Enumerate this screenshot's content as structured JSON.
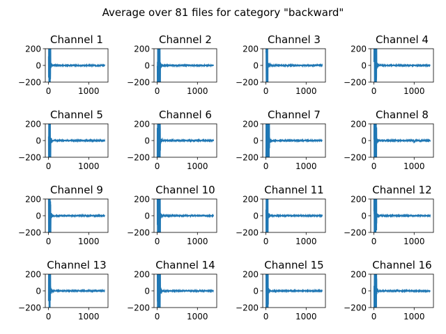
{
  "suptitle": "Average over 81 files for category \"backward\"",
  "colors": {
    "line": "#1f77b4",
    "axes": "#000000",
    "background": "#ffffff"
  },
  "chart_data": {
    "type": "line",
    "grid": false,
    "layout": "4x4",
    "xlim": [
      -80,
      1480
    ],
    "ylim": [
      -200,
      200
    ],
    "xticks": [
      0,
      1000
    ],
    "xtick_labels": [
      "0",
      "1000"
    ],
    "yticks": [
      200,
      0,
      -200
    ],
    "ytick_labels": [
      "200",
      "0",
      "−200"
    ],
    "x_extent": [
      0,
      1400
    ],
    "panels": [
      {
        "title": "Channel 1",
        "spike_center": 25,
        "spike_width": 55,
        "artifact": {
          "x": 1200,
          "dy": -3
        }
      },
      {
        "title": "Channel 2",
        "spike_center": 30,
        "spike_width": 80
      },
      {
        "title": "Channel 3",
        "spike_center": 28,
        "spike_width": 50
      },
      {
        "title": "Channel 4",
        "spike_center": 25,
        "spike_width": 70
      },
      {
        "title": "Channel 5",
        "spike_center": 25,
        "spike_width": 55
      },
      {
        "title": "Channel 6",
        "spike_center": 30,
        "spike_width": 80
      },
      {
        "title": "Channel 7",
        "spike_center": 30,
        "spike_width": 90
      },
      {
        "title": "Channel 8",
        "spike_center": 28,
        "spike_width": 70,
        "artifact": {
          "x": 1010,
          "dy": -4
        }
      },
      {
        "title": "Channel 9",
        "spike_center": 25,
        "spike_width": 60
      },
      {
        "title": "Channel 10",
        "spike_center": 30,
        "spike_width": 80
      },
      {
        "title": "Channel 11",
        "spike_center": 28,
        "spike_width": 55
      },
      {
        "title": "Channel 12",
        "spike_center": 25,
        "spike_width": 70
      },
      {
        "title": "Channel 13",
        "spike_center": 25,
        "spike_width": 55
      },
      {
        "title": "Channel 14",
        "spike_center": 30,
        "spike_width": 80
      },
      {
        "title": "Channel 15",
        "spike_center": 28,
        "spike_width": 60
      },
      {
        "title": "Channel 16",
        "spike_center": 25,
        "spike_width": 70
      }
    ]
  }
}
